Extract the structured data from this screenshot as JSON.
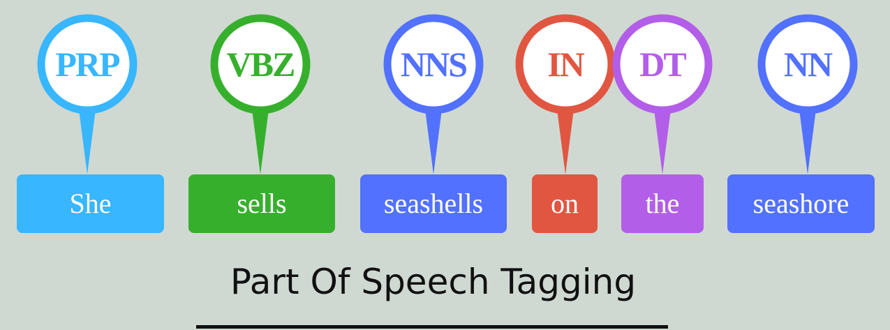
{
  "title": "Part Of Speech Tagging",
  "tokens": [
    {
      "tag": "PRP",
      "word": "She",
      "color": "#38b6ff"
    },
    {
      "tag": "VBZ",
      "word": "sells",
      "color": "#36b02c"
    },
    {
      "tag": "NNS",
      "word": "seashells",
      "color": "#5271ff"
    },
    {
      "tag": "IN",
      "word": "on",
      "color": "#e15641"
    },
    {
      "tag": "DT",
      "word": "the",
      "color": "#b35ee8"
    },
    {
      "tag": "NN",
      "word": "seashore",
      "color": "#5271ff"
    }
  ]
}
